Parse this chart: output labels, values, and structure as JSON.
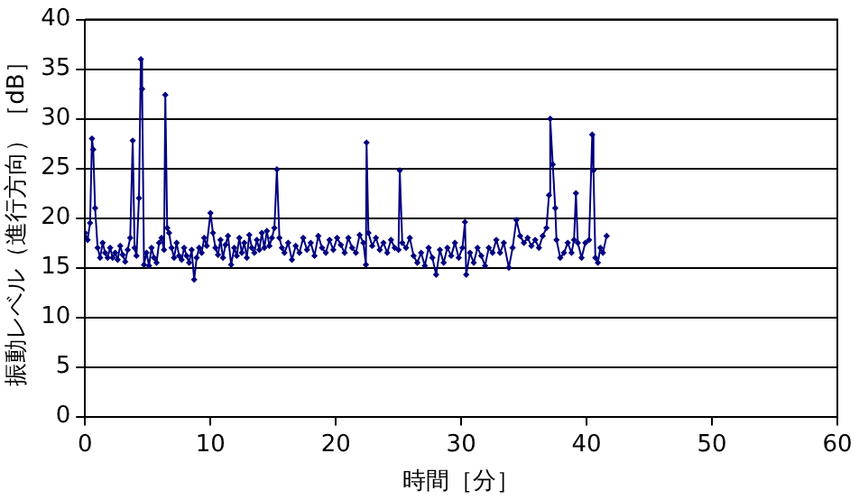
{
  "chart_data": {
    "type": "line",
    "xlabel": "時間［分］",
    "ylabel": "振動レベル（進行方向）［dB］",
    "xlim": [
      0,
      60
    ],
    "xticks": [
      0,
      10,
      20,
      30,
      40,
      50,
      60
    ],
    "ylim": [
      0,
      40
    ],
    "yticks": [
      0,
      5,
      10,
      15,
      20,
      25,
      30,
      35,
      40
    ],
    "grid": "y",
    "marker": "diamond",
    "line_style": "solid",
    "legend": false,
    "x": [
      0,
      0.2,
      0.4,
      0.55,
      0.65,
      0.8,
      1.0,
      1.2,
      1.4,
      1.6,
      1.8,
      2.0,
      2.2,
      2.4,
      2.6,
      2.8,
      3.0,
      3.2,
      3.4,
      3.6,
      3.8,
      3.95,
      4.1,
      4.3,
      4.45,
      4.55,
      4.7,
      4.9,
      5.1,
      5.3,
      5.5,
      5.7,
      5.9,
      6.1,
      6.3,
      6.4,
      6.55,
      6.7,
      6.9,
      7.1,
      7.3,
      7.5,
      7.7,
      7.9,
      8.1,
      8.3,
      8.5,
      8.7,
      8.9,
      9.1,
      9.3,
      9.5,
      9.7,
      10.0,
      10.2,
      10.4,
      10.6,
      10.8,
      11.0,
      11.2,
      11.4,
      11.65,
      11.9,
      12.1,
      12.3,
      12.5,
      12.7,
      12.9,
      13.1,
      13.3,
      13.5,
      13.7,
      13.9,
      14.1,
      14.3,
      14.5,
      14.7,
      14.9,
      15.1,
      15.3,
      15.5,
      15.7,
      15.9,
      16.2,
      16.5,
      16.8,
      17.1,
      17.4,
      17.7,
      18.0,
      18.3,
      18.6,
      18.9,
      19.2,
      19.5,
      19.8,
      20.1,
      20.4,
      20.7,
      21.0,
      21.3,
      21.6,
      21.9,
      22.2,
      22.4,
      22.45,
      22.6,
      22.9,
      23.2,
      23.5,
      23.8,
      24.1,
      24.4,
      24.7,
      25.0,
      25.1,
      25.3,
      25.6,
      25.9,
      26.2,
      26.5,
      26.8,
      27.1,
      27.4,
      27.7,
      28.0,
      28.3,
      28.6,
      28.9,
      29.2,
      29.5,
      29.8,
      30.1,
      30.3,
      30.4,
      30.7,
      31.0,
      31.3,
      31.6,
      31.9,
      32.2,
      32.5,
      32.8,
      33.1,
      33.4,
      33.8,
      34.1,
      34.4,
      34.7,
      35.0,
      35.3,
      35.6,
      35.9,
      36.2,
      36.5,
      36.8,
      37.0,
      37.1,
      37.3,
      37.5,
      37.6,
      37.9,
      38.2,
      38.5,
      38.8,
      39.0,
      39.15,
      39.3,
      39.6,
      39.9,
      40.2,
      40.45,
      40.55,
      40.7,
      40.9,
      41.1,
      41.3,
      41.6
    ],
    "series": [
      {
        "color": "#000080",
        "values": [
          18.5,
          17.8,
          19.5,
          28,
          26.9,
          21,
          17,
          16,
          17.5,
          16.5,
          16,
          17,
          16,
          16.5,
          15.8,
          17.2,
          16.3,
          15.6,
          16.8,
          18,
          27.8,
          17,
          16.2,
          22,
          36,
          33,
          15.3,
          16.5,
          15.2,
          17,
          16,
          15.5,
          17.5,
          18,
          16.8,
          32.4,
          19,
          18.5,
          17,
          16,
          17.5,
          16.2,
          15.8,
          17,
          16.2,
          15.5,
          16.8,
          13.8,
          16,
          17,
          16.5,
          18,
          17.2,
          20.5,
          18.5,
          17,
          16.3,
          17.8,
          16,
          17.3,
          18.2,
          15.3,
          17,
          16.2,
          18,
          16.5,
          17.5,
          16,
          18.3,
          17,
          16.5,
          17.8,
          16.8,
          18.5,
          17,
          18.7,
          17.2,
          18,
          19,
          24.9,
          18,
          17,
          16.5,
          17.5,
          15.8,
          17.2,
          16.5,
          18,
          16.8,
          17.5,
          16.2,
          18.2,
          17,
          16.5,
          17.8,
          16.8,
          18,
          17.3,
          16.5,
          18,
          17,
          16.5,
          18.3,
          17.5,
          15.3,
          27.6,
          18.5,
          17.2,
          18,
          16.8,
          17.5,
          16.5,
          17.8,
          17,
          16.8,
          24.8,
          17.5,
          17,
          18,
          16.2,
          15.5,
          16.5,
          15.2,
          17,
          16,
          14.3,
          16.8,
          15.5,
          17,
          16.2,
          17.5,
          16,
          17,
          19.6,
          14.3,
          16.5,
          15.5,
          17,
          16.2,
          15.2,
          17,
          16.5,
          17.8,
          16.5,
          17.5,
          15,
          17,
          19.8,
          18.2,
          17.5,
          18,
          17.2,
          17.8,
          17,
          18.2,
          19,
          22.3,
          30,
          25.4,
          21,
          17.8,
          16,
          16.5,
          17.5,
          16.5,
          17.8,
          22.5,
          17.5,
          16,
          17.5,
          17.8,
          28.4,
          24.8,
          16,
          15.5,
          17,
          16.5,
          18.2
        ]
      }
    ]
  }
}
